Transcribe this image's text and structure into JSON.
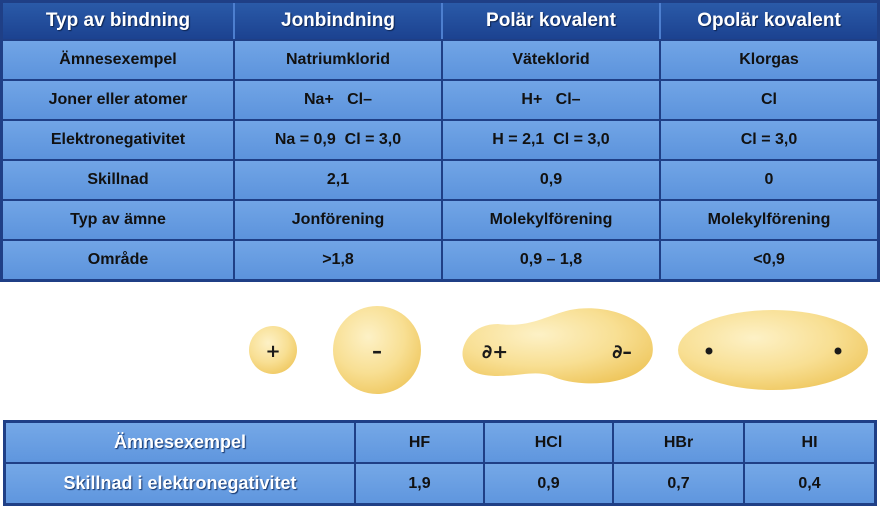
{
  "top_table": {
    "headers": [
      "Typ av bindning",
      "Jonbindning",
      "Polär kovalent",
      "Opolär kovalent"
    ],
    "rows": [
      [
        "Ämnesexempel",
        "Natriumklorid",
        "Väteklorid",
        "Klorgas"
      ],
      [
        "Joner eller atomer",
        "Na+   Cl–",
        "H+   Cl–",
        "Cl"
      ],
      [
        "Elektronegativitet",
        "Na = 0,9  Cl = 3,0",
        "H = 2,1  Cl = 3,0",
        "Cl = 3,0"
      ],
      [
        "Skillnad",
        "2,1",
        "0,9",
        "0"
      ],
      [
        "Typ av ämne",
        "Jonförening",
        "Molekylförening",
        "Molekylförening"
      ],
      [
        "Område",
        ">1,8",
        "0,9 – 1,8",
        "<0,9"
      ]
    ]
  },
  "illustration": {
    "ion_positive_symbol": "+",
    "ion_negative_symbol": "–",
    "polar_positive_symbol": "∂+",
    "polar_negative_symbol": "∂–",
    "fill_color": "#f5d67a",
    "highlight_color": "#fdf1c6"
  },
  "bottom_table": {
    "rows": [
      [
        "Ämnesexempel",
        "HF",
        "HCl",
        "HBr",
        "HI"
      ],
      [
        "Skillnad i elektronegativitet",
        "1,9",
        "0,9",
        "0,7",
        "0,4"
      ]
    ]
  }
}
